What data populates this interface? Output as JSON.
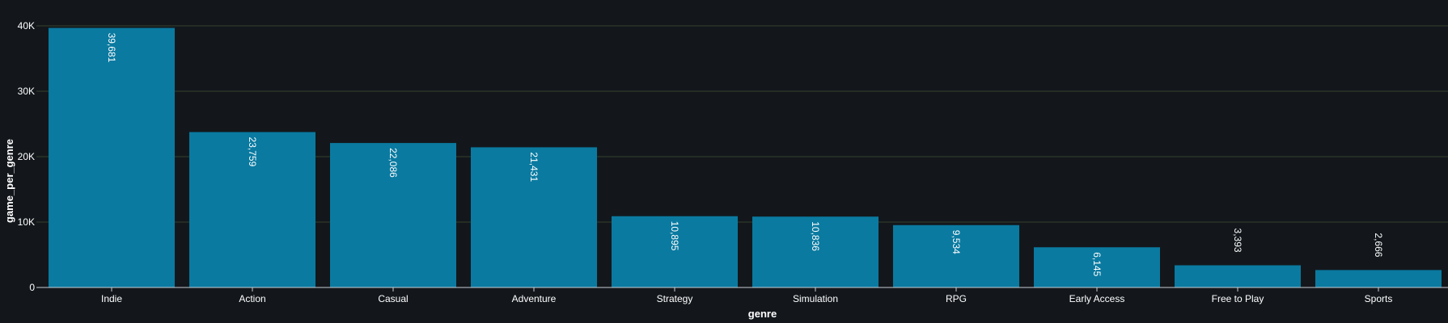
{
  "chart_data": {
    "type": "bar",
    "categories": [
      "Indie",
      "Action",
      "Casual",
      "Adventure",
      "Strategy",
      "Simulation",
      "RPG",
      "Early Access",
      "Free to Play",
      "Sports"
    ],
    "values": [
      39681,
      23759,
      22086,
      21431,
      10895,
      10836,
      9534,
      6145,
      3393,
      2666
    ],
    "data_labels": [
      "39,681",
      "23,759",
      "22,086",
      "21,431",
      "10,895",
      "10,836",
      "9,534",
      "6,145",
      "3,393",
      "2,666"
    ],
    "xlabel": "genre",
    "ylabel": "game_per_genre",
    "ylim": [
      0,
      40000
    ],
    "yticks": [
      0,
      10000,
      20000,
      30000,
      40000
    ],
    "ytick_labels": [
      "0",
      "10K",
      "20K",
      "30K",
      "40K"
    ],
    "grid": true,
    "legend": "none",
    "colors": {
      "background": "#13171c",
      "bar": "#0a7aa0",
      "grid": "#34402c",
      "axis": "#c9ced3",
      "text": "#ffffff"
    }
  }
}
